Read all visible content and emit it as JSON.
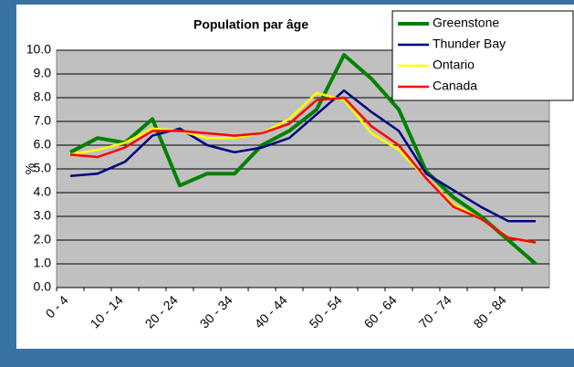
{
  "chart_data": {
    "type": "line",
    "title": "Population par âge",
    "y_label": "%",
    "categories": [
      "0 - 4",
      null,
      "10 - 14",
      null,
      "20 - 24",
      null,
      "30 - 34",
      null,
      "40 - 44",
      null,
      "50 - 54",
      null,
      "60 - 64",
      null,
      "70 - 74",
      null,
      "80 - 84",
      null
    ],
    "series": [
      {
        "name": "Greenstone",
        "color": "#008000",
        "values": [
          5.7,
          6.3,
          6.1,
          7.1,
          4.3,
          4.8,
          4.8,
          6.0,
          6.6,
          7.5,
          9.8,
          8.8,
          7.5,
          4.9,
          3.8,
          3.0,
          2.0,
          1.0
        ]
      },
      {
        "name": "Thunder Bay",
        "color": "#000080",
        "values": [
          4.7,
          4.8,
          5.3,
          6.4,
          6.7,
          6.0,
          5.7,
          5.9,
          6.3,
          7.3,
          8.3,
          7.4,
          6.6,
          4.8,
          4.1,
          3.4,
          2.8,
          2.8
        ]
      },
      {
        "name": "Ontario",
        "color": "#ffff00",
        "values": [
          5.6,
          5.8,
          6.1,
          6.7,
          6.6,
          6.3,
          6.3,
          6.5,
          7.1,
          8.2,
          7.9,
          6.5,
          5.8,
          4.6,
          3.5,
          2.9,
          2.1,
          1.9
        ]
      },
      {
        "name": "Canada",
        "color": "#ff0000",
        "values": [
          5.6,
          5.5,
          5.9,
          6.6,
          6.6,
          6.5,
          6.4,
          6.5,
          6.9,
          7.9,
          8.0,
          6.8,
          6.0,
          4.6,
          3.4,
          2.9,
          2.1,
          1.9
        ]
      }
    ],
    "ylim": [
      0,
      10
    ],
    "yticks": [
      {
        "value": 0,
        "label": "0.0"
      },
      {
        "value": 1,
        "label": "1.0"
      },
      {
        "value": 2,
        "label": "2.0"
      },
      {
        "value": 3,
        "label": "3.0"
      },
      {
        "value": 4,
        "label": "4.0"
      },
      {
        "value": 5,
        "label": "5.0"
      },
      {
        "value": 6,
        "label": "6.0"
      },
      {
        "value": 7,
        "label": "7.0"
      },
      {
        "value": 8,
        "label": "8.0"
      },
      {
        "value": 9,
        "label": "9.0"
      },
      {
        "value": 10,
        "label": "10.0"
      }
    ],
    "grid": true,
    "legend": "top-right"
  }
}
